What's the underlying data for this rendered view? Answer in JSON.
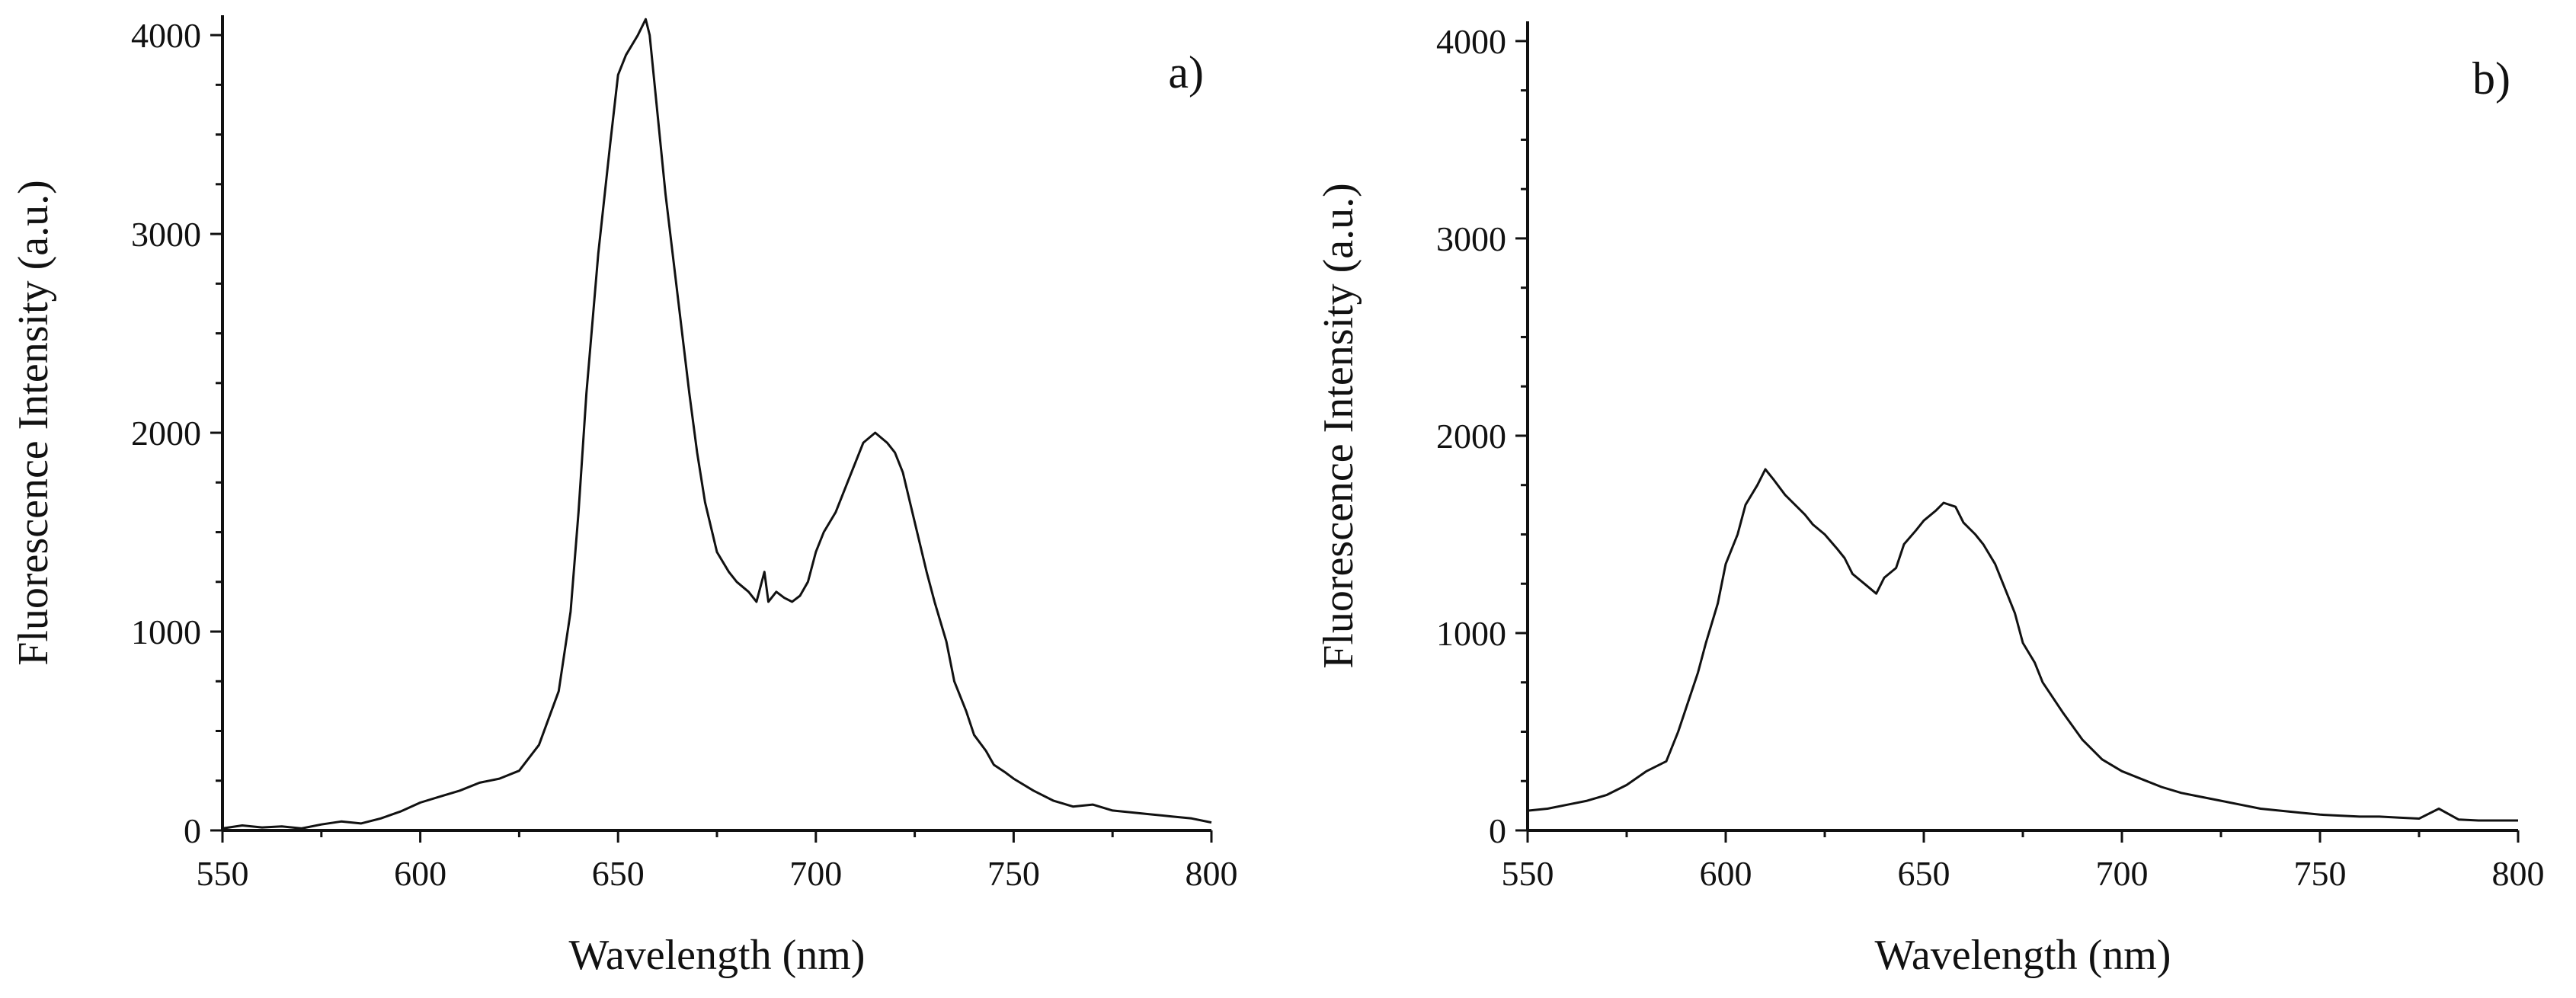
{
  "chart_data": [
    {
      "type": "line",
      "panel_label": "a)",
      "xlabel": "Wavelength (nm)",
      "ylabel": "Fluorescence Intensity (a.u.)",
      "xlim": [
        550,
        800
      ],
      "ylim": [
        0,
        4100
      ],
      "x_ticks": [
        550,
        600,
        650,
        700,
        750,
        800
      ],
      "y_ticks": [
        0,
        1000,
        2000,
        3000,
        4000
      ],
      "grid": false,
      "legend": "none",
      "series": [
        {
          "color": "#111111",
          "x": [
            550,
            555,
            560,
            565,
            570,
            575,
            580,
            585,
            590,
            595,
            600,
            605,
            610,
            615,
            620,
            625,
            630,
            635,
            638,
            640,
            642,
            645,
            648,
            650,
            652,
            655,
            657,
            658,
            660,
            662,
            665,
            668,
            670,
            672,
            675,
            678,
            680,
            683,
            685,
            687,
            688,
            690,
            692,
            694,
            696,
            698,
            700,
            702,
            705,
            708,
            710,
            712,
            715,
            718,
            720,
            722,
            725,
            728,
            730,
            733,
            735,
            738,
            740,
            743,
            745,
            748,
            750,
            755,
            760,
            765,
            770,
            775,
            780,
            785,
            790,
            795,
            800
          ],
          "y": [
            10,
            25,
            15,
            20,
            10,
            30,
            45,
            35,
            60,
            95,
            140,
            170,
            200,
            240,
            260,
            300,
            430,
            700,
            1100,
            1600,
            2200,
            2900,
            3450,
            3800,
            3900,
            4000,
            4080,
            4000,
            3600,
            3200,
            2700,
            2200,
            1900,
            1650,
            1400,
            1300,
            1250,
            1200,
            1150,
            1300,
            1150,
            1200,
            1170,
            1150,
            1180,
            1250,
            1400,
            1500,
            1600,
            1750,
            1850,
            1950,
            2000,
            1950,
            1900,
            1800,
            1550,
            1300,
            1150,
            950,
            750,
            600,
            480,
            400,
            330,
            290,
            260,
            200,
            150,
            120,
            130,
            100,
            90,
            80,
            70,
            60,
            40
          ]
        }
      ]
    },
    {
      "type": "line",
      "panel_label": "b)",
      "xlabel": "Wavelength (nm)",
      "ylabel": "Fluorescence Intensity (a.u.)",
      "xlim": [
        550,
        800
      ],
      "ylim": [
        0,
        4100
      ],
      "x_ticks": [
        550,
        600,
        650,
        700,
        750,
        800
      ],
      "y_ticks": [
        0,
        1000,
        2000,
        3000,
        4000
      ],
      "grid": false,
      "legend": "none",
      "series": [
        {
          "color": "#111111",
          "x": [
            550,
            555,
            560,
            565,
            570,
            575,
            580,
            585,
            588,
            590,
            593,
            595,
            598,
            600,
            603,
            605,
            608,
            610,
            612,
            615,
            618,
            620,
            622,
            625,
            628,
            630,
            632,
            635,
            638,
            640,
            643,
            645,
            648,
            650,
            653,
            655,
            658,
            660,
            663,
            665,
            668,
            670,
            673,
            675,
            678,
            680,
            685,
            690,
            695,
            700,
            705,
            710,
            715,
            720,
            725,
            730,
            735,
            740,
            745,
            750,
            755,
            760,
            765,
            770,
            775,
            780,
            785,
            790,
            795,
            800
          ],
          "y": [
            100,
            110,
            130,
            150,
            180,
            230,
            300,
            350,
            500,
            620,
            800,
            950,
            1150,
            1350,
            1500,
            1650,
            1750,
            1830,
            1780,
            1700,
            1640,
            1600,
            1550,
            1500,
            1430,
            1380,
            1300,
            1250,
            1200,
            1280,
            1330,
            1450,
            1520,
            1570,
            1620,
            1660,
            1640,
            1560,
            1500,
            1450,
            1350,
            1250,
            1100,
            950,
            850,
            750,
            600,
            460,
            360,
            300,
            260,
            220,
            190,
            170,
            150,
            130,
            110,
            100,
            90,
            80,
            75,
            70,
            70,
            65,
            60,
            110,
            55,
            50,
            50,
            50
          ]
        }
      ]
    }
  ]
}
